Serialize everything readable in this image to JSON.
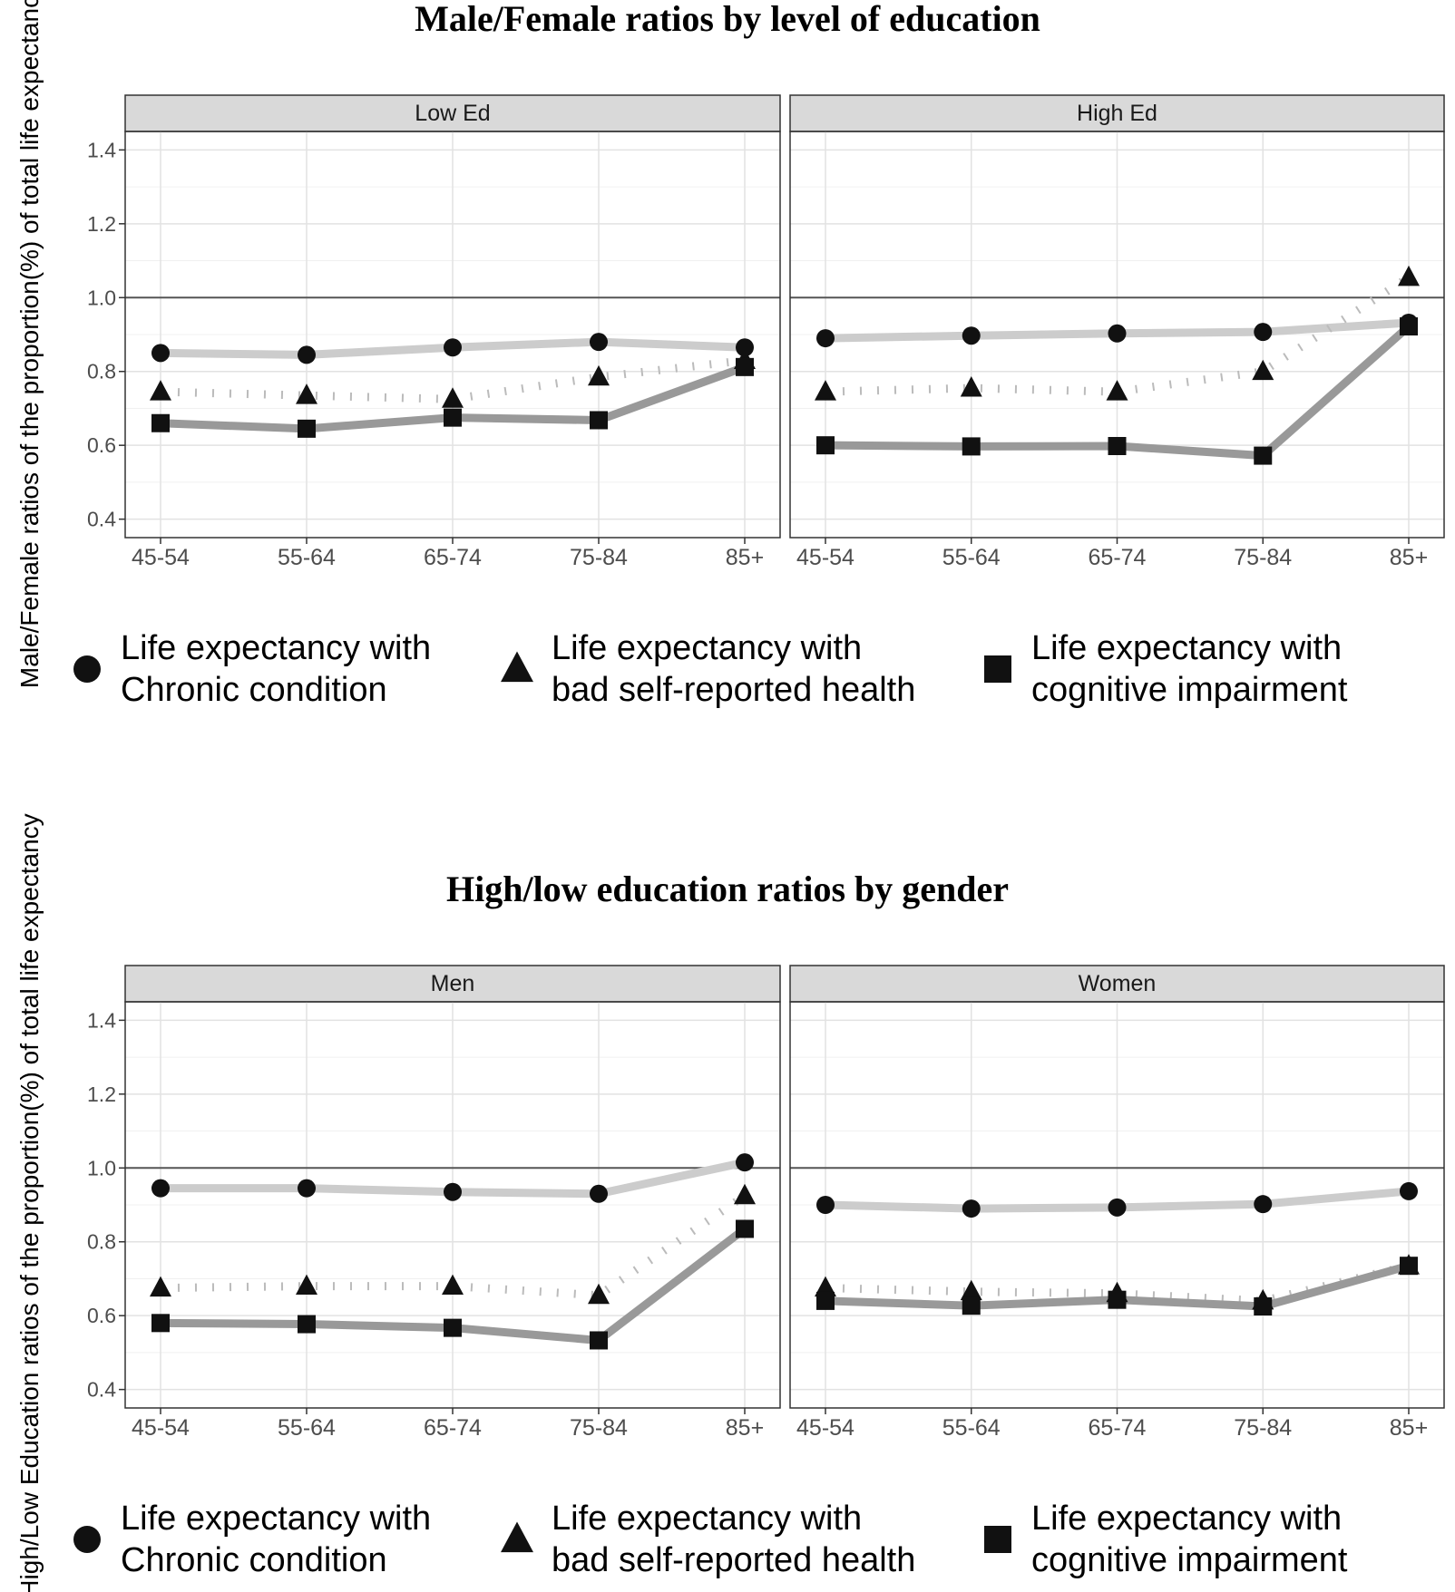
{
  "chart_data": [
    {
      "type": "line",
      "title": "Male/Female ratios by level of education",
      "ylabel": "Male/Female ratios of the proportion(%) of total life expectancy",
      "xlabel": "",
      "ylim": [
        0.35,
        1.45
      ],
      "yticks": [
        "0.4",
        "0.6",
        "0.8",
        "1.0",
        "1.2",
        "1.4"
      ],
      "reference_line": 1.0,
      "grid": true,
      "legend_position": "bottom",
      "categories": [
        "45-54",
        "55-64",
        "65-74",
        "75-84",
        "85+"
      ],
      "legend": [
        {
          "label_line1": "Life expectancy with",
          "label_line2": "Chronic condition",
          "marker": "circle",
          "line_color": "#cccccc",
          "line_style": "solid"
        },
        {
          "label_line1": "Life expectancy with",
          "label_line2": "bad self-reported health",
          "marker": "triangle",
          "line_color": "#bbbbbb",
          "line_style": "dotted"
        },
        {
          "label_line1": "Life expectancy with",
          "label_line2": "cognitive impairment",
          "marker": "square",
          "line_color": "#999999",
          "line_style": "solid"
        }
      ],
      "panels": [
        {
          "label": "Low Ed",
          "series": [
            {
              "values": [
                0.85,
                0.845,
                0.865,
                0.88,
                0.865
              ]
            },
            {
              "values": [
                0.745,
                0.735,
                0.725,
                0.785,
                0.83
              ]
            },
            {
              "values": [
                0.66,
                0.645,
                0.675,
                0.668,
                0.812
              ]
            }
          ]
        },
        {
          "label": "High Ed",
          "series": [
            {
              "values": [
                0.89,
                0.897,
                0.903,
                0.907,
                0.932
              ]
            },
            {
              "values": [
                0.745,
                0.755,
                0.745,
                0.8,
                1.055
              ]
            },
            {
              "values": [
                0.6,
                0.597,
                0.598,
                0.572,
                0.922
              ]
            }
          ]
        }
      ]
    },
    {
      "type": "line",
      "title": "High/low education ratios by gender",
      "ylabel": "High/Low Education ratios of the proportion(%) of total life expectancy",
      "xlabel": "",
      "ylim": [
        0.35,
        1.45
      ],
      "yticks": [
        "0.4",
        "0.6",
        "0.8",
        "1.0",
        "1.2",
        "1.4"
      ],
      "reference_line": 1.0,
      "grid": true,
      "legend_position": "bottom",
      "categories": [
        "45-54",
        "55-64",
        "65-74",
        "75-84",
        "85+"
      ],
      "legend": [
        {
          "label_line1": "Life expectancy with",
          "label_line2": "Chronic condition",
          "marker": "circle",
          "line_color": "#cccccc",
          "line_style": "solid"
        },
        {
          "label_line1": "Life expectancy with",
          "label_line2": "bad self-reported health",
          "marker": "triangle",
          "line_color": "#bbbbbb",
          "line_style": "dotted"
        },
        {
          "label_line1": "Life expectancy with",
          "label_line2": "cognitive impairment",
          "marker": "square",
          "line_color": "#999999",
          "line_style": "solid"
        }
      ],
      "panels": [
        {
          "label": "Men",
          "series": [
            {
              "values": [
                0.945,
                0.945,
                0.935,
                0.93,
                1.015
              ]
            },
            {
              "values": [
                0.675,
                0.68,
                0.68,
                0.655,
                0.925
              ]
            },
            {
              "values": [
                0.58,
                0.577,
                0.567,
                0.533,
                0.835
              ]
            }
          ]
        },
        {
          "label": "Women",
          "series": [
            {
              "values": [
                0.9,
                0.89,
                0.893,
                0.902,
                0.937
              ]
            },
            {
              "values": [
                0.675,
                0.665,
                0.66,
                0.64,
                0.735
              ]
            },
            {
              "values": [
                0.64,
                0.627,
                0.643,
                0.625,
                0.735
              ]
            }
          ]
        }
      ]
    }
  ]
}
